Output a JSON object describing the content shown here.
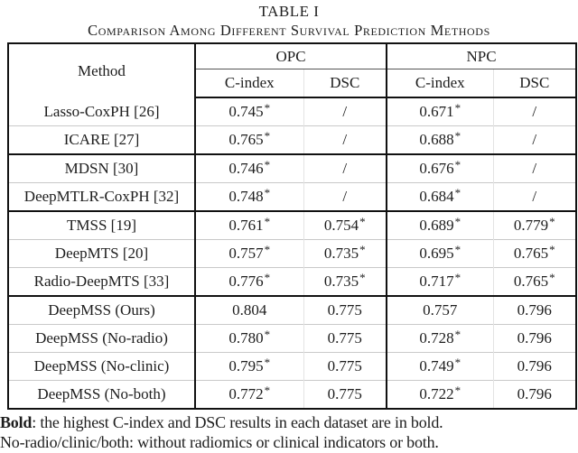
{
  "page": {
    "background": "#ffffff",
    "text_color": "#1d1d1d",
    "border_color": "#111111",
    "faint_line_color": "#c9c9c9"
  },
  "title": "TABLE I",
  "subtitle": "Comparison Among Different Survival Prediction Methods",
  "table": {
    "method_header": "Method",
    "group_headers": [
      "OPC",
      "NPC"
    ],
    "sub_headers": [
      "C-index",
      "DSC",
      "C-index",
      "DSC"
    ],
    "rows": [
      {
        "method": "Lasso-CoxPH [26]",
        "sep": "none",
        "values": [
          {
            "v": "0.745",
            "star": "*"
          },
          {
            "v": "/"
          },
          {
            "v": "0.671",
            "star": "*"
          },
          {
            "v": "/"
          }
        ]
      },
      {
        "method": "ICARE [27]",
        "sep": "thin",
        "values": [
          {
            "v": "0.765",
            "star": "*"
          },
          {
            "v": "/"
          },
          {
            "v": "0.688",
            "star": "*"
          },
          {
            "v": "/"
          }
        ]
      },
      {
        "method": "MDSN [30]",
        "sep": "thick",
        "values": [
          {
            "v": "0.746",
            "star": "*"
          },
          {
            "v": "/"
          },
          {
            "v": "0.676",
            "star": "*"
          },
          {
            "v": "/"
          }
        ]
      },
      {
        "method": "DeepMTLR-CoxPH [32]",
        "sep": "thin",
        "values": [
          {
            "v": "0.748",
            "star": "*"
          },
          {
            "v": "/"
          },
          {
            "v": "0.684",
            "star": "*"
          },
          {
            "v": "/"
          }
        ]
      },
      {
        "method": "TMSS [19]",
        "sep": "thick",
        "values": [
          {
            "v": "0.761",
            "star": "*"
          },
          {
            "v": "0.754",
            "star": "*"
          },
          {
            "v": "0.689",
            "star": "*"
          },
          {
            "v": "0.779",
            "star": "*"
          }
        ]
      },
      {
        "method": "DeepMTS [20]",
        "sep": "thin",
        "values": [
          {
            "v": "0.757",
            "star": "*"
          },
          {
            "v": "0.735",
            "star": "*"
          },
          {
            "v": "0.695",
            "star": "*"
          },
          {
            "v": "0.765",
            "star": "*"
          }
        ]
      },
      {
        "method": "Radio-DeepMTS [33]",
        "sep": "thin",
        "values": [
          {
            "v": "0.776",
            "star": "*"
          },
          {
            "v": "0.735",
            "star": "*"
          },
          {
            "v": "0.717",
            "star": "*"
          },
          {
            "v": "0.765",
            "star": "*"
          }
        ]
      },
      {
        "method": "DeepMSS (Ours)",
        "sep": "thick",
        "values": [
          {
            "v": "0.804",
            "bold": true
          },
          {
            "v": "0.775",
            "bold": true
          },
          {
            "v": "0.757",
            "bold": true
          },
          {
            "v": "0.796",
            "bold": true
          }
        ]
      },
      {
        "method": "DeepMSS (No-radio)",
        "sep": "thin",
        "values": [
          {
            "v": "0.780",
            "star": "*"
          },
          {
            "v": "0.775",
            "bold": true
          },
          {
            "v": "0.728",
            "star": "*"
          },
          {
            "v": "0.796",
            "bold": true
          }
        ]
      },
      {
        "method": "DeepMSS (No-clinic)",
        "sep": "thin",
        "values": [
          {
            "v": "0.795",
            "star": "*"
          },
          {
            "v": "0.775",
            "bold": true
          },
          {
            "v": "0.749",
            "star": "*"
          },
          {
            "v": "0.796",
            "bold": true
          }
        ]
      },
      {
        "method": "DeepMSS (No-both)",
        "sep": "thin",
        "values": [
          {
            "v": "0.772",
            "star": "*"
          },
          {
            "v": "0.775",
            "bold": true
          },
          {
            "v": "0.722",
            "star": "*"
          },
          {
            "v": "0.796",
            "bold": true
          }
        ]
      }
    ]
  },
  "footnotes": {
    "line1_term": "Bold",
    "line1_text": ": the highest C-index and DSC results in each dataset are in bold.",
    "line2": "No-radio/clinic/both: without radiomics or clinical indicators or both."
  }
}
